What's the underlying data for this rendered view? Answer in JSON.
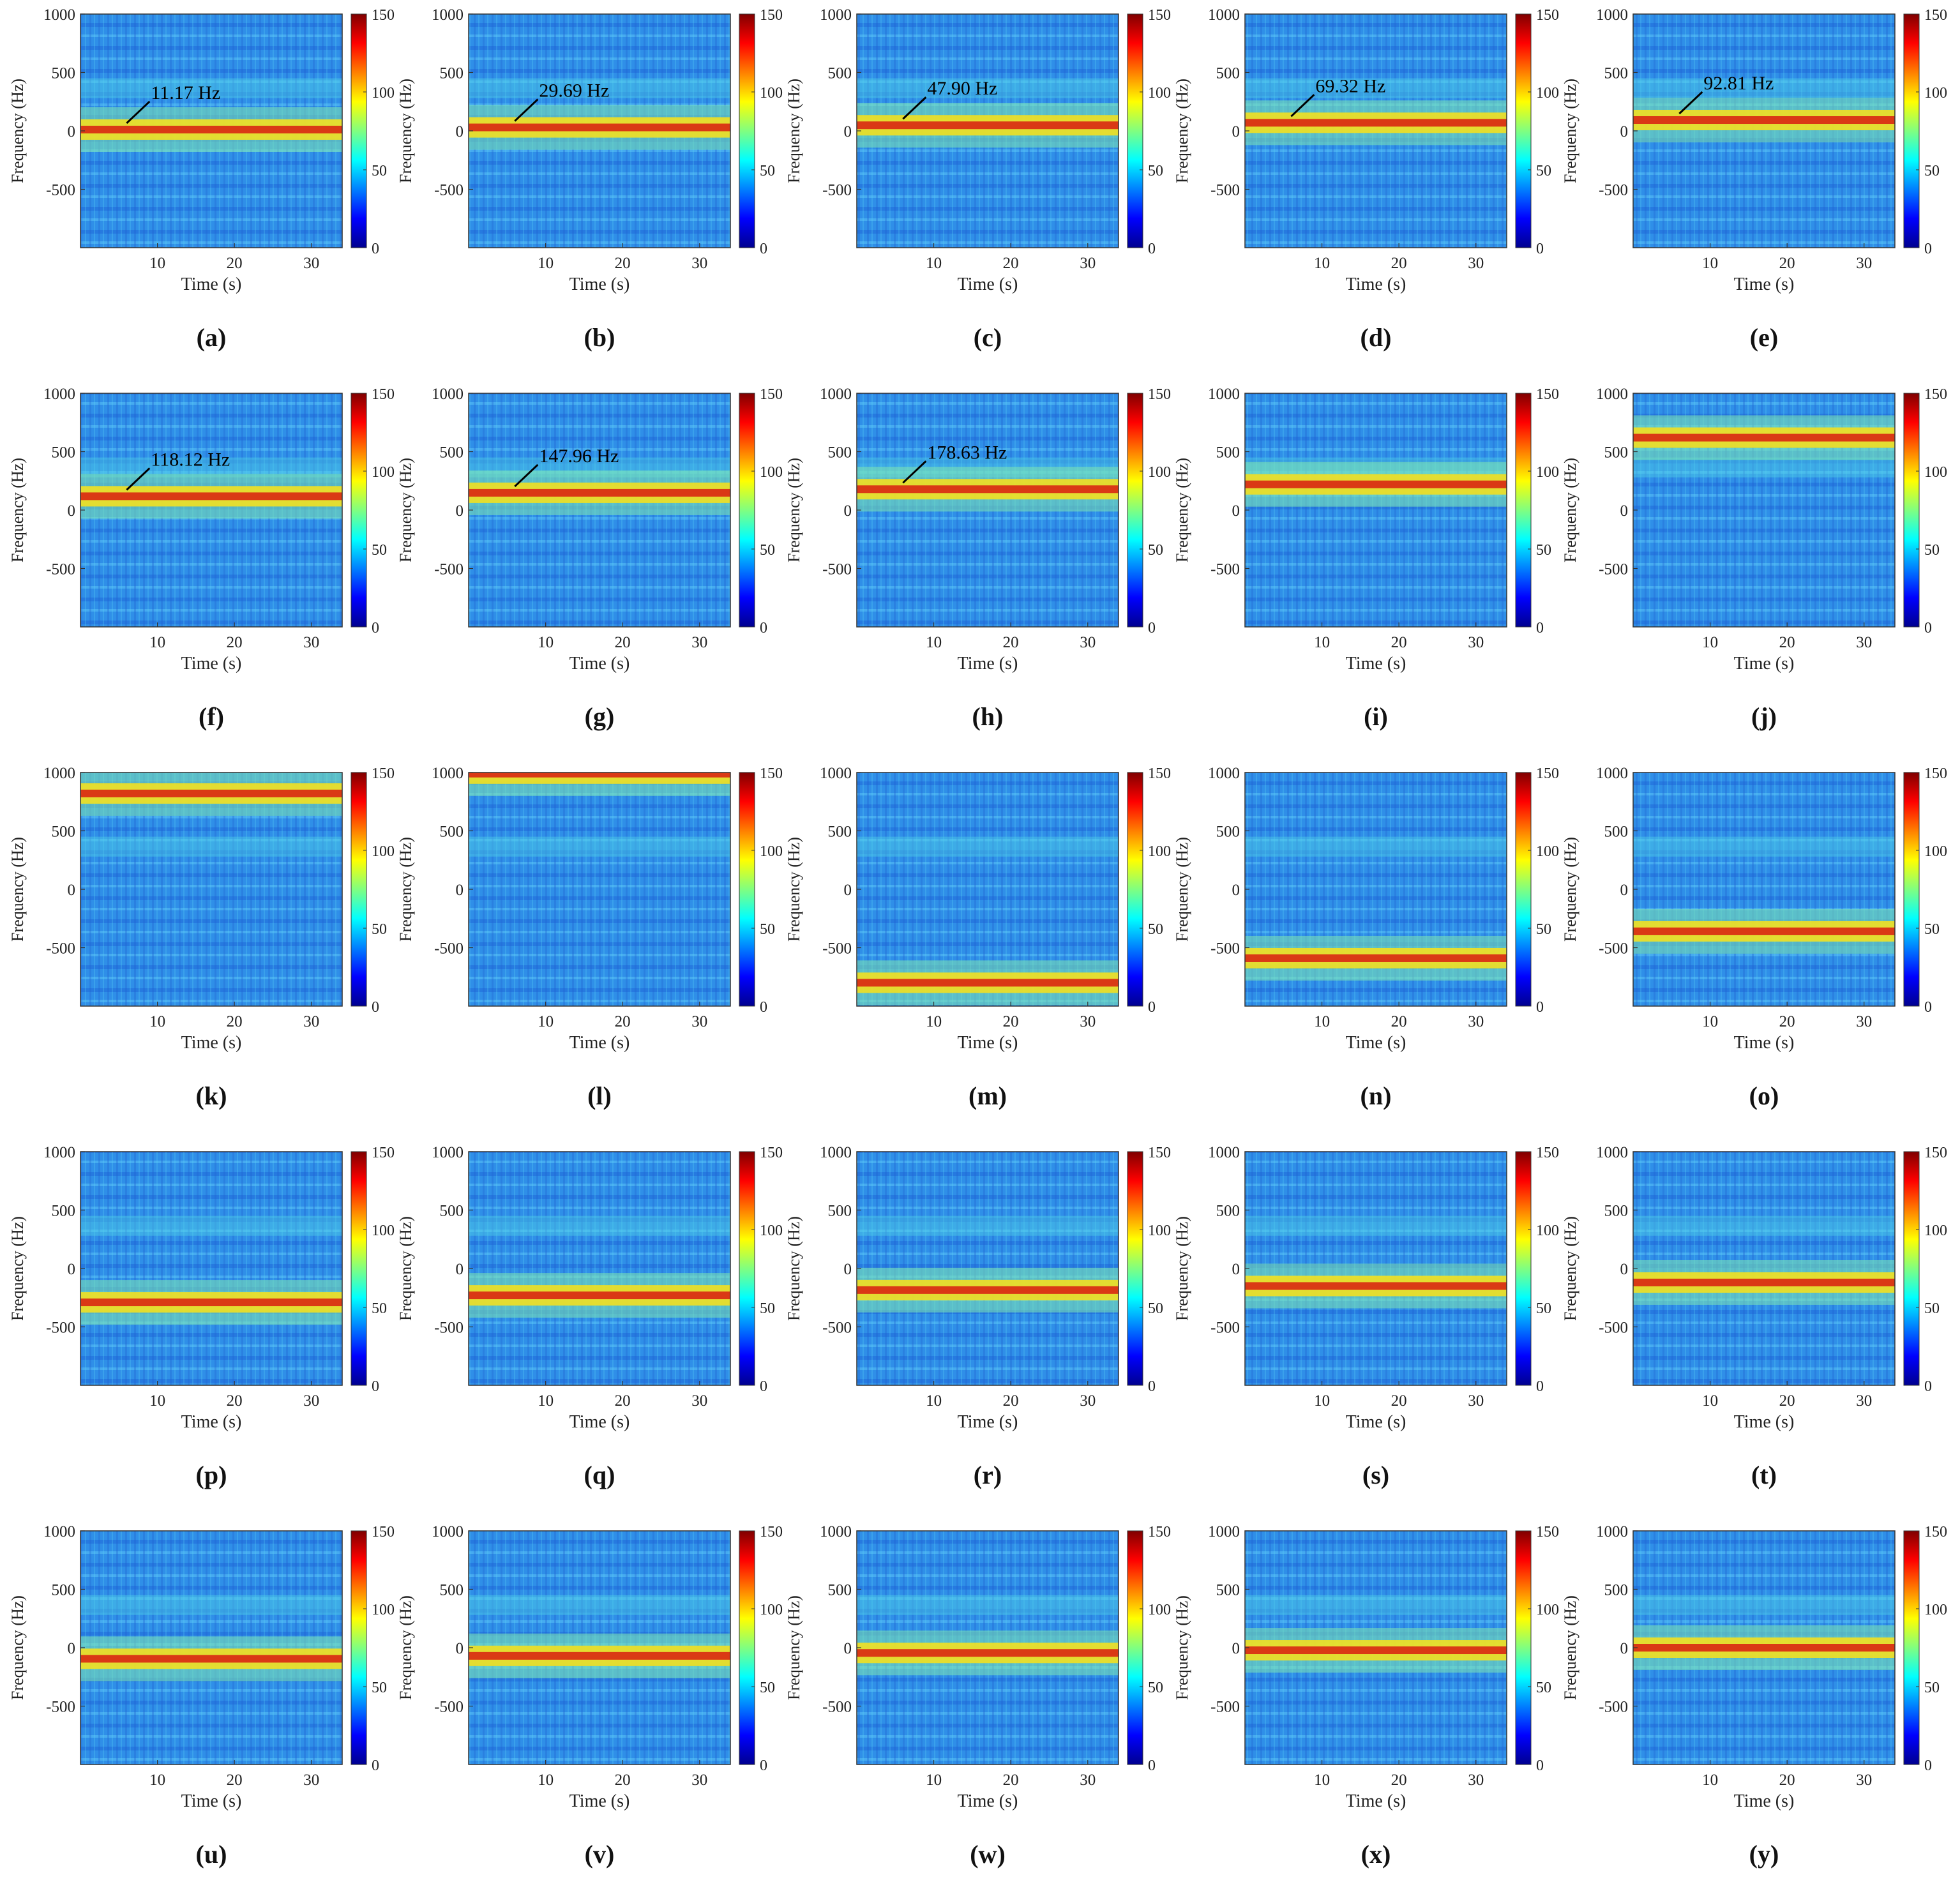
{
  "chart_data": {
    "type": "heatmap",
    "layout": "5x5 grid of spectrogram subplots",
    "xlabel": "Time (s)",
    "ylabel": "Frequency (Hz)",
    "xticks": [
      10,
      20,
      30
    ],
    "yticks": [
      1000,
      500,
      0,
      -500
    ],
    "xlim": [
      0,
      34
    ],
    "ylim": [
      -1000,
      1000
    ],
    "colorbar_ticks": [
      150,
      100,
      50,
      0
    ],
    "colorbar_range": [
      0,
      150
    ],
    "colormap": "jet",
    "panels": [
      {
        "label": "(a)",
        "band_hz": 11.17,
        "annotation": "11.17 Hz"
      },
      {
        "label": "(b)",
        "band_hz": 29.69,
        "annotation": "29.69 Hz"
      },
      {
        "label": "(c)",
        "band_hz": 47.9,
        "annotation": "47.90 Hz"
      },
      {
        "label": "(d)",
        "band_hz": 69.32,
        "annotation": "69.32 Hz"
      },
      {
        "label": "(e)",
        "band_hz": 92.81,
        "annotation": "92.81 Hz"
      },
      {
        "label": "(f)",
        "band_hz": 118.12,
        "annotation": "118.12 Hz"
      },
      {
        "label": "(g)",
        "band_hz": 147.96,
        "annotation": "147.96 Hz"
      },
      {
        "label": "(h)",
        "band_hz": 178.63,
        "annotation": "178.63 Hz"
      },
      {
        "label": "(i)",
        "band_hz": 220,
        "annotation": ""
      },
      {
        "label": "(j)",
        "band_hz": 620,
        "annotation": ""
      },
      {
        "label": "(k)",
        "band_hz": 820,
        "annotation": ""
      },
      {
        "label": "(l)",
        "band_hz": 990,
        "annotation": ""
      },
      {
        "label": "(m)",
        "band_hz": -800,
        "annotation": ""
      },
      {
        "label": "(n)",
        "band_hz": -590,
        "annotation": ""
      },
      {
        "label": "(o)",
        "band_hz": -360,
        "annotation": ""
      },
      {
        "label": "(p)",
        "band_hz": -290,
        "annotation": ""
      },
      {
        "label": "(q)",
        "band_hz": -230,
        "annotation": ""
      },
      {
        "label": "(r)",
        "band_hz": -185,
        "annotation": ""
      },
      {
        "label": "(s)",
        "band_hz": -150,
        "annotation": ""
      },
      {
        "label": "(t)",
        "band_hz": -120,
        "annotation": ""
      },
      {
        "label": "(u)",
        "band_hz": -95,
        "annotation": ""
      },
      {
        "label": "(v)",
        "band_hz": -70,
        "annotation": ""
      },
      {
        "label": "(w)",
        "band_hz": -45,
        "annotation": ""
      },
      {
        "label": "(x)",
        "band_hz": -22,
        "annotation": ""
      },
      {
        "label": "(y)",
        "band_hz": 0,
        "annotation": ""
      }
    ]
  },
  "colors": {
    "background_blue": "#2f8fe8",
    "band_red": "#d81c10",
    "band_yellow": "#f2e020",
    "cyan_noise": "#4fd0e6"
  }
}
